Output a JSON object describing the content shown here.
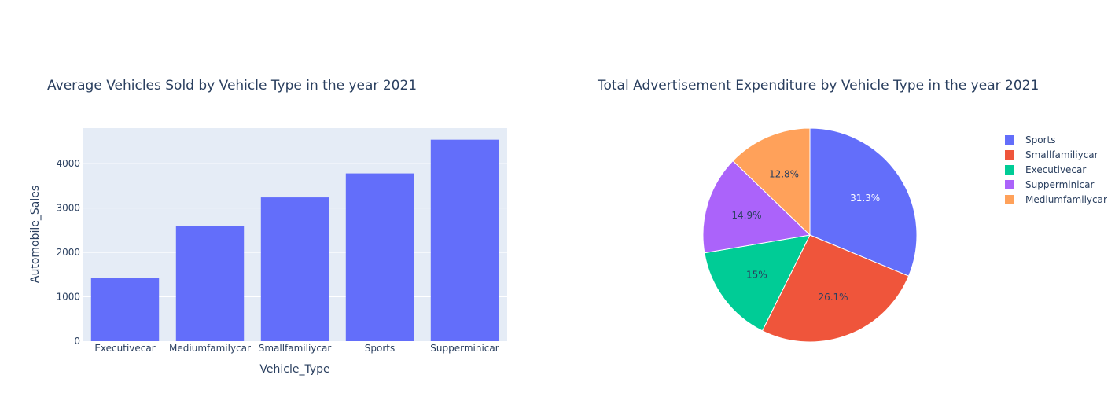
{
  "colors": {
    "bar": "#636efa",
    "plot_bg": "#e5ecf6",
    "text": "#2a3f5f",
    "grid": "#ffffff"
  },
  "chart_data": [
    {
      "type": "bar",
      "title": "Average Vehicles Sold by Vehicle Type in the year 2021",
      "xlabel": "Vehicle_Type",
      "ylabel": "Automobile_Sales",
      "categories": [
        "Executivecar",
        "Mediumfamilycar",
        "Smallfamiliycar",
        "Sports",
        "Supperminicar"
      ],
      "values": [
        1430,
        2590,
        3240,
        3780,
        4540
      ],
      "ylim": [
        0,
        4800
      ],
      "yticks": [
        0,
        1000,
        2000,
        3000,
        4000
      ],
      "ytick_labels": [
        "0",
        "1000",
        "2000",
        "3000",
        "4000"
      ],
      "grid": true
    },
    {
      "type": "pie",
      "title": "Total Advertisement Expenditure by Vehicle Type in the year 2021",
      "labels": [
        "Sports",
        "Smallfamiliycar",
        "Executivecar",
        "Supperminicar",
        "Mediumfamilycar"
      ],
      "values": [
        31.3,
        26.1,
        15.0,
        14.9,
        12.8
      ],
      "text_labels": [
        "31.3%",
        "26.1%",
        "15%",
        "14.9%",
        "12.8%"
      ],
      "colors": [
        "#636efa",
        "#ef553b",
        "#00cc96",
        "#ab63fa",
        "#ffa15a"
      ],
      "legend_position": "top-right"
    }
  ]
}
